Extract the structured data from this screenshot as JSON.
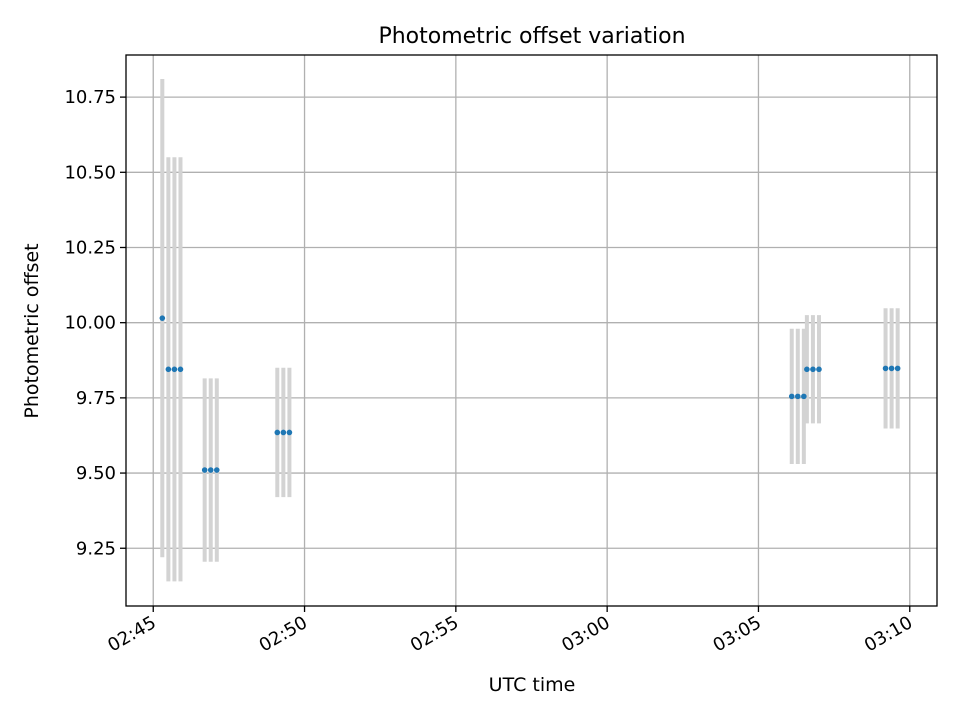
{
  "chart_data": {
    "type": "scatter",
    "title": "Photometric offset variation",
    "xlabel": "UTC time",
    "ylabel": "Photometric offset",
    "x_tick_labels": [
      "02:45",
      "02:50",
      "02:55",
      "03:00",
      "03:05",
      "03:10"
    ],
    "x_ticks": [
      "02:45",
      "02:50",
      "02:55",
      "03:00",
      "03:05",
      "03:10"
    ],
    "xlim": [
      "02:44:06",
      "03:10:54"
    ],
    "y_tick_labels": [
      "9.25",
      "9.50",
      "9.75",
      "10.00",
      "10.25",
      "10.50",
      "10.75"
    ],
    "y_ticks": [
      9.25,
      9.5,
      9.75,
      10.0,
      10.25,
      10.5,
      10.75
    ],
    "ylim": [
      9.058,
      10.89
    ],
    "grid": true,
    "point_color": "#1f77b4",
    "errorbar_color": "#d3d3d3",
    "points": [
      {
        "x": "02:45:18",
        "y": 10.015,
        "yerr": 0.795
      },
      {
        "x": "02:45:30",
        "y": 9.845,
        "yerr": 0.705
      },
      {
        "x": "02:45:42",
        "y": 9.845,
        "yerr": 0.705
      },
      {
        "x": "02:45:54",
        "y": 9.845,
        "yerr": 0.705
      },
      {
        "x": "02:46:42",
        "y": 9.51,
        "yerr": 0.305
      },
      {
        "x": "02:46:54",
        "y": 9.51,
        "yerr": 0.305
      },
      {
        "x": "02:47:06",
        "y": 9.51,
        "yerr": 0.305
      },
      {
        "x": "02:49:06",
        "y": 9.635,
        "yerr": 0.215
      },
      {
        "x": "02:49:18",
        "y": 9.635,
        "yerr": 0.215
      },
      {
        "x": "02:49:30",
        "y": 9.635,
        "yerr": 0.215
      },
      {
        "x": "03:06:06",
        "y": 9.755,
        "yerr": 0.225
      },
      {
        "x": "03:06:18",
        "y": 9.755,
        "yerr": 0.225
      },
      {
        "x": "03:06:30",
        "y": 9.755,
        "yerr": 0.225
      },
      {
        "x": "03:06:36",
        "y": 9.845,
        "yerr": 0.18
      },
      {
        "x": "03:06:48",
        "y": 9.845,
        "yerr": 0.18
      },
      {
        "x": "03:07:00",
        "y": 9.845,
        "yerr": 0.18
      },
      {
        "x": "03:09:12",
        "y": 9.848,
        "yerr": 0.2
      },
      {
        "x": "03:09:24",
        "y": 9.848,
        "yerr": 0.2
      },
      {
        "x": "03:09:36",
        "y": 9.848,
        "yerr": 0.2
      }
    ]
  }
}
